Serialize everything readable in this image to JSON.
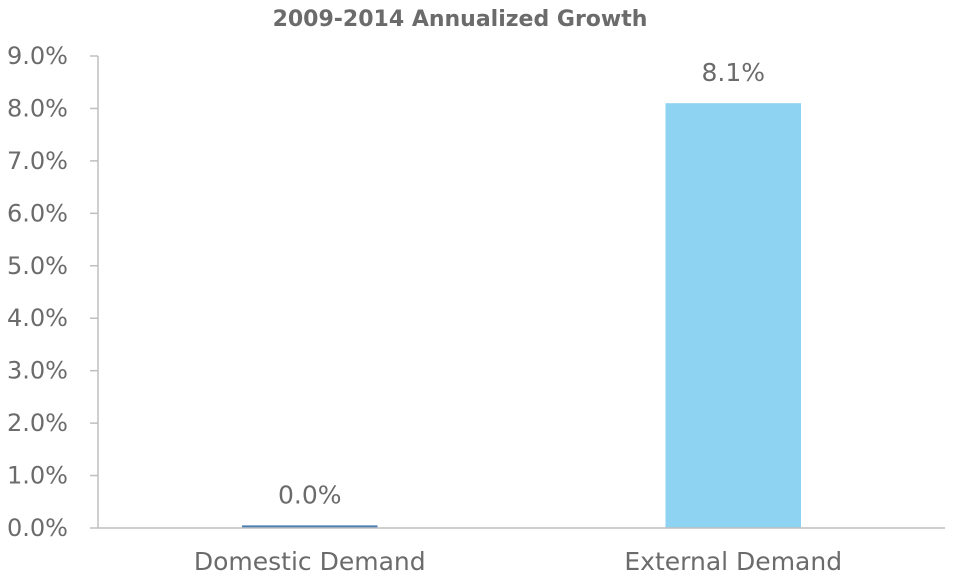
{
  "chart_data": {
    "type": "bar",
    "title": "2009-2014 Annualized Growth",
    "xlabel": "",
    "ylabel": "",
    "categories": [
      "Domestic Demand",
      "External Demand"
    ],
    "values": [
      0.0005,
      0.081
    ],
    "data_labels": [
      "0.0%",
      "8.1%"
    ],
    "bar_colors": [
      "#4a7fb5",
      "#8fd3f2"
    ],
    "ylim": [
      0,
      0.09
    ],
    "yticks": [
      0,
      0.01,
      0.02,
      0.03,
      0.04,
      0.05,
      0.06,
      0.07,
      0.08,
      0.09
    ],
    "ytick_labels": [
      "0.0%",
      "1.0%",
      "2.0%",
      "3.0%",
      "4.0%",
      "5.0%",
      "6.0%",
      "7.0%",
      "8.0%",
      "9.0%"
    ],
    "grid": false,
    "legend": "none",
    "axis_color": "#bfbfbf",
    "text_color": "#6b6b6b"
  }
}
